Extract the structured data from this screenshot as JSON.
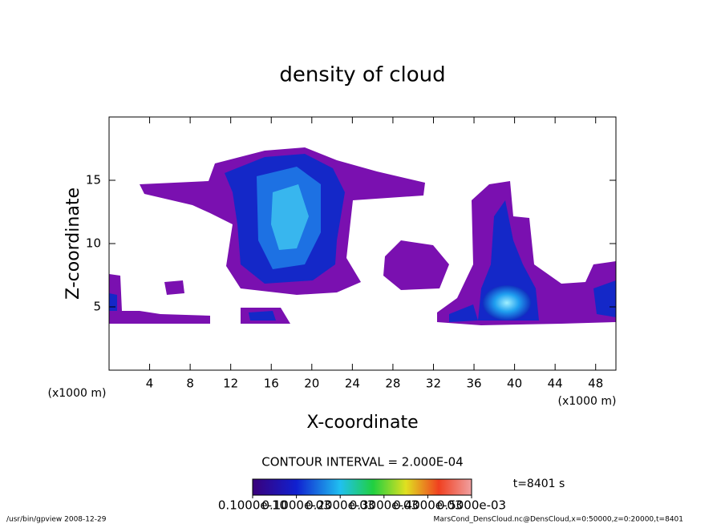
{
  "chart_data": {
    "type": "contour",
    "title": "density of cloud",
    "xlabel": "X-coordinate",
    "ylabel": "Z-coordinate",
    "xunits": "(x1000 m)",
    "yunits": "(x1000 m)",
    "xlim": [
      0,
      50
    ],
    "ylim": [
      0,
      20
    ],
    "xticks": [
      4,
      8,
      12,
      16,
      20,
      24,
      28,
      32,
      36,
      40,
      44,
      48
    ],
    "yticks": [
      5,
      10,
      15
    ],
    "contour_interval": "CONTOUR INTERVAL = 2.000E-04",
    "time": "t=8401 s",
    "colorbar_lim": [
      1e-11,
      0.0005
    ],
    "colorbar_ticks": [
      {
        "value": 1e-11,
        "label": "0.1000e-10"
      },
      {
        "value": 0.0001,
        "label": "0.1000e-03"
      },
      {
        "value": 0.0002,
        "label": "0.2000e-03"
      },
      {
        "value": 0.0003,
        "label": "0.3000e-03"
      },
      {
        "value": 0.0004,
        "label": "0.4000e-03"
      },
      {
        "value": 0.0005,
        "label": "0.5000e-03"
      }
    ],
    "footer_left": "/usr/bin/gpview  2008-12-29",
    "footer_right": "MarsCond_DensCloud.nc@DensCloud,x=0:50000,z=0:20000,t=8401"
  }
}
